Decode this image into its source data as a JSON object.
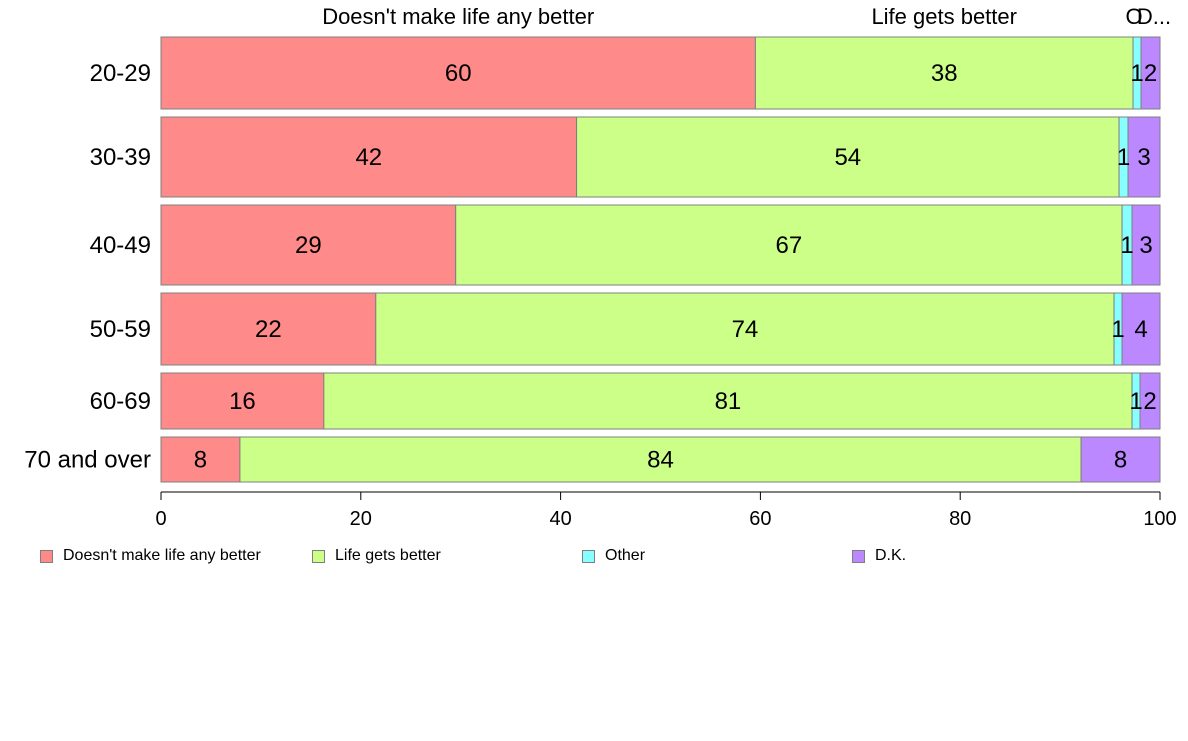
{
  "chart_data": {
    "type": "bar",
    "orientation": "horizontal",
    "stacked": true,
    "categories": [
      "20-29",
      "30-39",
      "40-49",
      "50-59",
      "60-69",
      "70 and over"
    ],
    "series": [
      {
        "name": "Doesn't make life any better",
        "color": "#ff8a8a",
        "values": [
          60,
          42,
          29,
          22,
          16,
          8
        ]
      },
      {
        "name": "Life gets better",
        "color": "#ccff88",
        "values": [
          38,
          54,
          67,
          74,
          81,
          84
        ]
      },
      {
        "name": "Other",
        "color": "#88ffff",
        "values": [
          1,
          1,
          1,
          1,
          1,
          0
        ]
      },
      {
        "name": "D.K.",
        "color": "#bb88ff",
        "values": [
          2,
          3,
          3,
          4,
          2,
          8
        ]
      }
    ],
    "actual_shares": [
      [
        59.5,
        37.8,
        0.8,
        1.9
      ],
      [
        41.6,
        54.3,
        0.9,
        3.2
      ],
      [
        29.5,
        66.7,
        1.0,
        2.8
      ],
      [
        21.5,
        73.9,
        0.8,
        3.8
      ],
      [
        16.3,
        80.9,
        0.8,
        2.0
      ],
      [
        7.9,
        84.2,
        0.0,
        7.9
      ]
    ],
    "top_labels": [
      "Doesn't make life any better",
      "Life gets better",
      "O",
      "D..."
    ],
    "xticks": [
      0,
      20,
      40,
      60,
      80,
      100
    ],
    "xlim": [
      0,
      100
    ],
    "xlabel": "",
    "ylabel": "",
    "title": "",
    "grid": false,
    "legend": "bottom"
  }
}
